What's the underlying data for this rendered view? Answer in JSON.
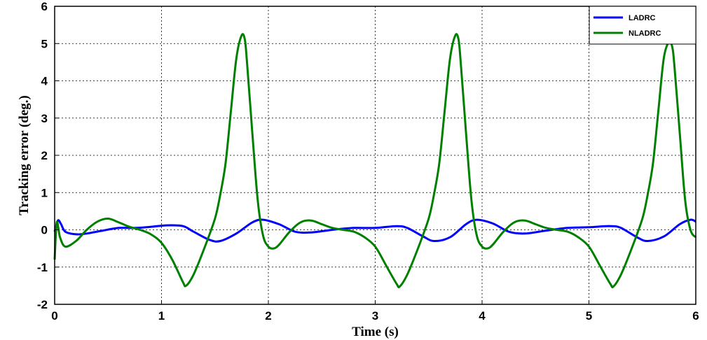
{
  "chart_data": {
    "type": "line",
    "title": "",
    "xlabel": "Time (s)",
    "ylabel": "Tracking error (deg.)",
    "xlim": [
      0,
      6
    ],
    "ylim": [
      -2,
      6
    ],
    "xticks": [
      "0",
      "1",
      "2",
      "3",
      "4",
      "5",
      "6"
    ],
    "yticks": [
      "-2",
      "-1",
      "0",
      "1",
      "2",
      "3",
      "4",
      "5",
      "6"
    ],
    "grid": true,
    "legend_position": "top-right",
    "series": [
      {
        "name": "LADRC",
        "color": "#0000ff",
        "x": [
          0,
          0.03,
          0.06,
          0.1,
          0.2,
          0.3,
          0.45,
          0.6,
          0.75,
          0.9,
          1.05,
          1.2,
          1.3,
          1.45,
          1.55,
          1.7,
          1.85,
          1.95,
          2.1,
          2.25,
          2.4,
          2.6,
          2.8,
          3.0,
          3.2,
          3.3,
          3.45,
          3.55,
          3.7,
          3.85,
          3.95,
          4.1,
          4.25,
          4.4,
          4.6,
          4.8,
          5.0,
          5.2,
          5.3,
          5.45,
          5.55,
          5.7,
          5.85,
          5.95,
          6.0
        ],
        "values": [
          -0.05,
          0.25,
          0.15,
          -0.05,
          -0.12,
          -0.1,
          -0.02,
          0.05,
          0.05,
          0.08,
          0.12,
          0.1,
          -0.05,
          -0.27,
          -0.3,
          -0.1,
          0.2,
          0.27,
          0.15,
          -0.05,
          -0.07,
          0.0,
          0.05,
          0.05,
          0.1,
          0.05,
          -0.18,
          -0.3,
          -0.2,
          0.15,
          0.27,
          0.17,
          -0.05,
          -0.1,
          -0.02,
          0.05,
          0.07,
          0.1,
          0.05,
          -0.2,
          -0.3,
          -0.18,
          0.15,
          0.27,
          0.22
        ]
      },
      {
        "name": "NLADRC",
        "color": "#008000",
        "x": [
          0,
          0.02,
          0.05,
          0.1,
          0.2,
          0.3,
          0.4,
          0.5,
          0.6,
          0.7,
          0.8,
          0.9,
          1.0,
          1.1,
          1.2,
          1.23,
          1.3,
          1.4,
          1.5,
          1.55,
          1.6,
          1.65,
          1.7,
          1.75,
          1.78,
          1.8,
          1.85,
          1.9,
          1.95,
          2.0,
          2.05,
          2.1,
          2.2,
          2.3,
          2.4,
          2.5,
          2.6,
          2.7,
          2.8,
          2.9,
          3.0,
          3.1,
          3.2,
          3.23,
          3.3,
          3.4,
          3.5,
          3.55,
          3.6,
          3.65,
          3.7,
          3.75,
          3.78,
          3.8,
          3.85,
          3.9,
          3.95,
          4.0,
          4.05,
          4.1,
          4.2,
          4.3,
          4.4,
          4.5,
          4.6,
          4.7,
          4.8,
          4.9,
          5.0,
          5.1,
          5.2,
          5.23,
          5.3,
          5.4,
          5.5,
          5.55,
          5.6,
          5.65,
          5.7,
          5.75,
          5.78,
          5.8,
          5.85,
          5.9,
          5.95,
          6.0
        ],
        "values": [
          -0.8,
          0.2,
          -0.2,
          -0.45,
          -0.3,
          0.0,
          0.22,
          0.3,
          0.2,
          0.08,
          0.0,
          -0.12,
          -0.35,
          -0.8,
          -1.4,
          -1.5,
          -1.2,
          -0.5,
          0.3,
          0.95,
          1.8,
          3.2,
          4.6,
          5.22,
          5.1,
          4.5,
          2.6,
          0.8,
          -0.15,
          -0.45,
          -0.5,
          -0.4,
          -0.05,
          0.2,
          0.25,
          0.15,
          0.05,
          0.0,
          -0.05,
          -0.2,
          -0.45,
          -0.95,
          -1.45,
          -1.52,
          -1.2,
          -0.5,
          0.3,
          0.95,
          1.8,
          3.2,
          4.6,
          5.22,
          5.1,
          4.5,
          2.6,
          0.8,
          -0.15,
          -0.45,
          -0.5,
          -0.4,
          -0.05,
          0.2,
          0.25,
          0.15,
          0.05,
          0.0,
          -0.05,
          -0.2,
          -0.45,
          -0.95,
          -1.45,
          -1.52,
          -1.2,
          -0.5,
          0.3,
          0.95,
          1.8,
          3.2,
          4.6,
          5.05,
          4.9,
          4.4,
          2.6,
          0.8,
          0.0,
          -0.2
        ]
      }
    ]
  }
}
